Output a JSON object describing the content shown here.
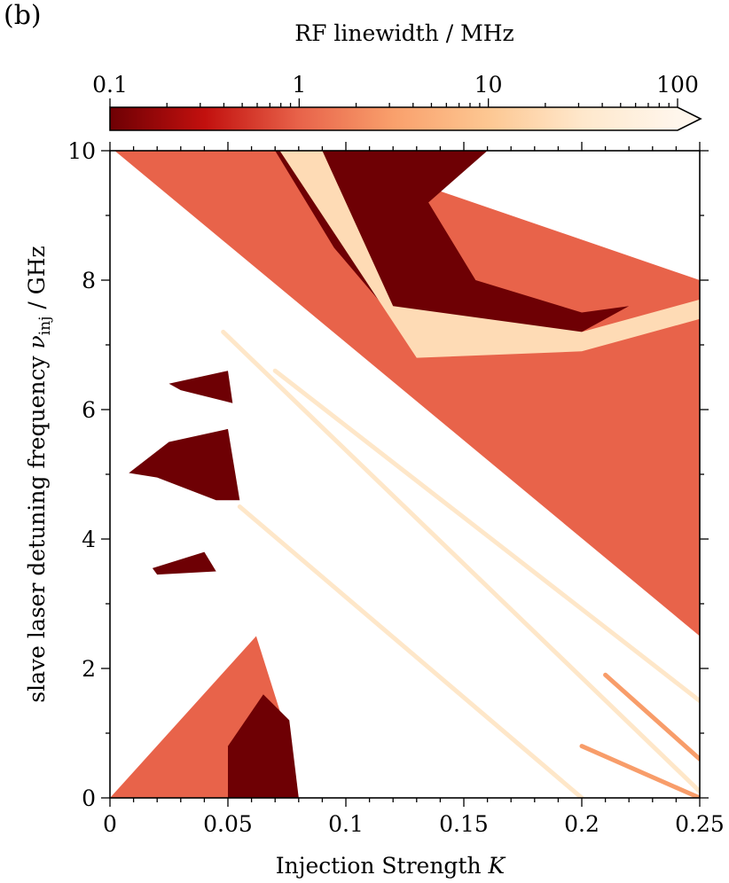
{
  "panel_label": "(b)",
  "colors": {
    "deep_red": "#7a0005",
    "orange_red": "#df5a44",
    "pale": "#fde8d3",
    "background": "#ffffff"
  },
  "colorbar": {
    "label": "RF linewidth / MHz",
    "scale": "log",
    "range": [
      0.1,
      100
    ],
    "extend": "max",
    "ticks": [
      0.1,
      1,
      10,
      100
    ],
    "tick_labels": [
      "0.1",
      "1",
      "10",
      "100"
    ],
    "stops": [
      {
        "value": 0.1,
        "color": "#6e0004"
      },
      {
        "value": 0.316,
        "color": "#c2100e"
      },
      {
        "value": 1,
        "color": "#e8634a"
      },
      {
        "value": 3.16,
        "color": "#f9a06c"
      },
      {
        "value": 10,
        "color": "#fdc792"
      },
      {
        "value": 31.6,
        "color": "#fee8cc"
      },
      {
        "value": 100,
        "color": "#fff6ec"
      }
    ]
  },
  "chart_data": {
    "type": "heatmap",
    "xlabel": "Injection Strength",
    "xlabel_var": "K",
    "ylabel": "slave laser detuning frequency",
    "ylabel_var": "ν",
    "ylabel_sub": "inj",
    "ylabel_unit": " / GHz",
    "xlim": [
      0,
      0.25
    ],
    "ylim": [
      0,
      10
    ],
    "xticks": [
      0,
      0.05,
      0.1,
      0.15,
      0.2,
      0.25
    ],
    "xtick_labels": [
      "0",
      "0.05",
      "0.1",
      "0.15",
      "0.2",
      "0.25"
    ],
    "yticks": [
      0,
      2,
      4,
      6,
      8,
      10
    ],
    "ytick_labels": [
      "0",
      "2",
      "4",
      "6",
      "8",
      "10"
    ],
    "regions": [
      {
        "level": 1,
        "points": [
          [
            0.002,
            10
          ],
          [
            0.09,
            10
          ],
          [
            0.25,
            8
          ],
          [
            0.25,
            2.5
          ],
          [
            0.002,
            10
          ]
        ]
      },
      {
        "level": 1,
        "points": [
          [
            0,
            0
          ],
          [
            0.062,
            2.5
          ],
          [
            0.075,
            1.0
          ],
          [
            0.08,
            0
          ],
          [
            0,
            0
          ]
        ]
      },
      {
        "level": 0.1,
        "points": [
          [
            0.07,
            10
          ],
          [
            0.16,
            10
          ],
          [
            0.135,
            9.2
          ],
          [
            0.155,
            8.0
          ],
          [
            0.2,
            7.5
          ],
          [
            0.22,
            7.6
          ],
          [
            0.19,
            7.0
          ],
          [
            0.13,
            7.0
          ],
          [
            0.095,
            8.5
          ],
          [
            0.07,
            10
          ]
        ]
      },
      {
        "level": 0.1,
        "points": [
          [
            0.05,
            0
          ],
          [
            0.08,
            0
          ],
          [
            0.076,
            1.2
          ],
          [
            0.065,
            1.6
          ],
          [
            0.05,
            0.8
          ],
          [
            0.05,
            0
          ]
        ]
      },
      {
        "level": 0.1,
        "points": [
          [
            0.008,
            5.02
          ],
          [
            0.025,
            5.5
          ],
          [
            0.05,
            5.7
          ],
          [
            0.055,
            4.6
          ],
          [
            0.045,
            4.6
          ],
          [
            0.02,
            4.95
          ],
          [
            0.008,
            5.02
          ]
        ]
      },
      {
        "level": 0.1,
        "points": [
          [
            0.025,
            6.4
          ],
          [
            0.05,
            6.6
          ],
          [
            0.052,
            6.1
          ],
          [
            0.03,
            6.3
          ],
          [
            0.025,
            6.4
          ]
        ]
      },
      {
        "level": 0.1,
        "points": [
          [
            0.018,
            3.55
          ],
          [
            0.04,
            3.8
          ],
          [
            0.045,
            3.5
          ],
          [
            0.02,
            3.45
          ],
          [
            0.018,
            3.55
          ]
        ]
      },
      {
        "level": 20,
        "points": [
          [
            0.072,
            10
          ],
          [
            0.09,
            10
          ],
          [
            0.12,
            7.6
          ],
          [
            0.2,
            7.2
          ],
          [
            0.25,
            7.7
          ],
          [
            0.25,
            7.4
          ],
          [
            0.2,
            6.9
          ],
          [
            0.13,
            6.8
          ],
          [
            0.072,
            10
          ]
        ]
      }
    ],
    "ridges": [
      {
        "level": 30,
        "points": [
          [
            0.048,
            7.2
          ],
          [
            0.25,
            0.1
          ]
        ]
      },
      {
        "level": 30,
        "points": [
          [
            0.055,
            4.5
          ],
          [
            0.2,
            0
          ]
        ]
      },
      {
        "level": 30,
        "points": [
          [
            0.07,
            6.6
          ],
          [
            0.25,
            1.5
          ]
        ]
      },
      {
        "level": 3,
        "points": [
          [
            0.21,
            1.9
          ],
          [
            0.25,
            0.6
          ]
        ]
      },
      {
        "level": 3,
        "points": [
          [
            0.2,
            0.8
          ],
          [
            0.25,
            0
          ]
        ]
      }
    ]
  }
}
